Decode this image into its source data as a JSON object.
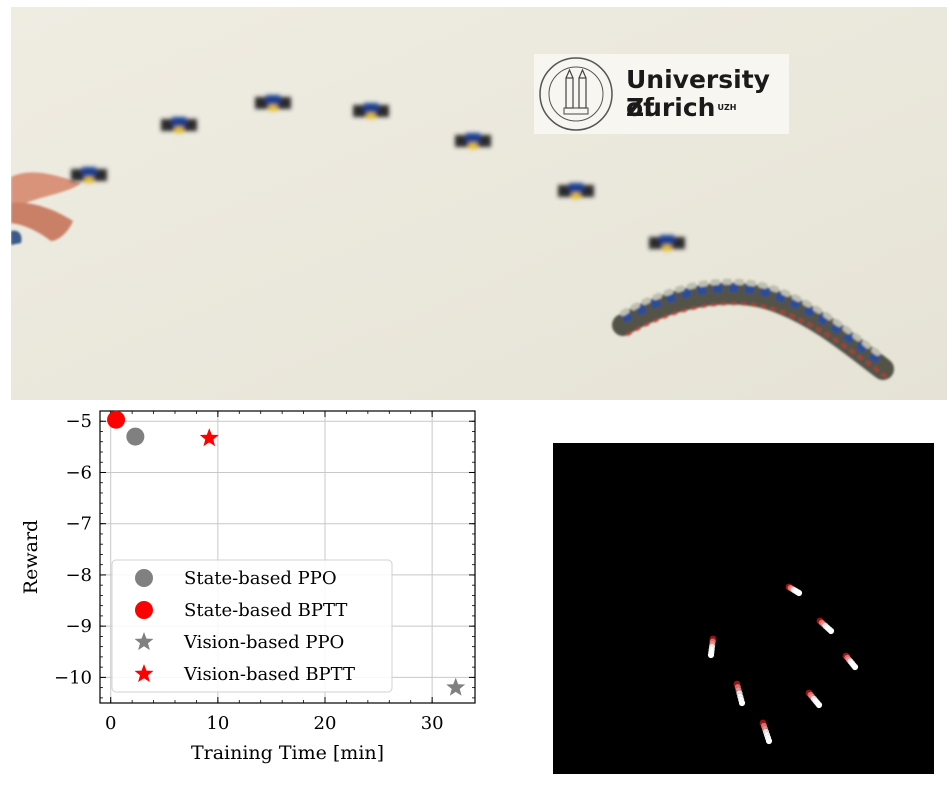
{
  "photo": {
    "logo_line1": "University of",
    "logo_line2": "Zurich",
    "logo_sup": "UZH",
    "colors": {
      "wall": "#ece9dd",
      "drone_blue": "#1d3f8f",
      "drone_yellow": "#e6c020"
    }
  },
  "chart_data": {
    "type": "scatter",
    "xlabel": "Training Time [min]",
    "ylabel": "Reward",
    "xlim": [
      -1,
      34
    ],
    "ylim": [
      -10.5,
      -4.8
    ],
    "xticks": [
      0,
      10,
      20,
      30
    ],
    "yticks": [
      -5,
      -6,
      -7,
      -8,
      -9,
      -10
    ],
    "grid": true,
    "legend_position": "lower-left",
    "series": [
      {
        "name": "State-based PPO",
        "marker": "circle",
        "color": "#808080",
        "x": 2.3,
        "y": -5.3
      },
      {
        "name": "State-based BPTT",
        "marker": "circle",
        "color": "#ff0000",
        "x": 0.5,
        "y": -4.97
      },
      {
        "name": "Vision-based PPO",
        "marker": "star",
        "color": "#808080",
        "x": 32.2,
        "y": -10.2
      },
      {
        "name": "Vision-based BPTT",
        "marker": "star",
        "color": "#ff0000",
        "x": 9.2,
        "y": -5.33
      }
    ]
  },
  "simulation": {
    "background": "#000000",
    "trail_head_color": "#ff2020",
    "trail_tail_color": "#ffffff"
  }
}
